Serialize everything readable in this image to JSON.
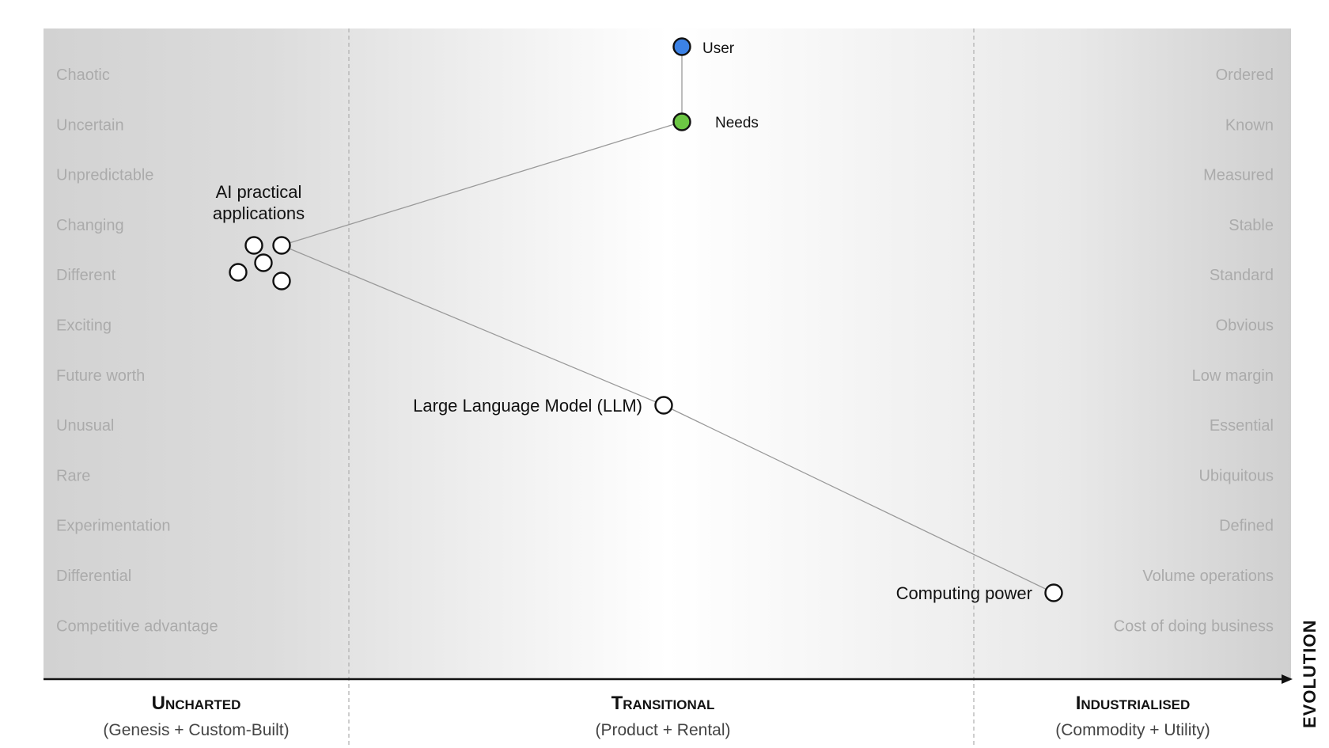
{
  "colors": {
    "user_node": "#3c82e6",
    "needs_node": "#6cc644",
    "component_node": "#ffffff",
    "link": "#9a9a9a",
    "descriptor_text": "#ababab"
  },
  "axis": {
    "label": "EVOLUTION"
  },
  "stages": [
    {
      "title": "Uncharted",
      "subtitle": "(Genesis + Custom-Built)"
    },
    {
      "title": "Transitional",
      "subtitle": "(Product + Rental)"
    },
    {
      "title": "Industrialised",
      "subtitle": "(Commodity + Utility)"
    }
  ],
  "descriptors_left": [
    "Chaotic",
    "Uncertain",
    "Unpredictable",
    "Changing",
    "Different",
    "Exciting",
    "Future worth",
    "Unusual",
    "Rare",
    "Experimentation",
    "Differential",
    "Competitive advantage"
  ],
  "descriptors_right": [
    "Ordered",
    "Known",
    "Measured",
    "Stable",
    "Standard",
    "Obvious",
    "Low margin",
    "Essential",
    "Ubiquitous",
    "Defined",
    "Volume operations",
    "Cost of doing business"
  ],
  "nodes": {
    "user": {
      "label": "User"
    },
    "needs": {
      "label": "Needs"
    },
    "ai_apps": {
      "label_line1": "AI practical",
      "label_line2": "applications"
    },
    "llm": {
      "label": "Large Language Model (LLM)"
    },
    "computing": {
      "label": "Computing power"
    }
  }
}
